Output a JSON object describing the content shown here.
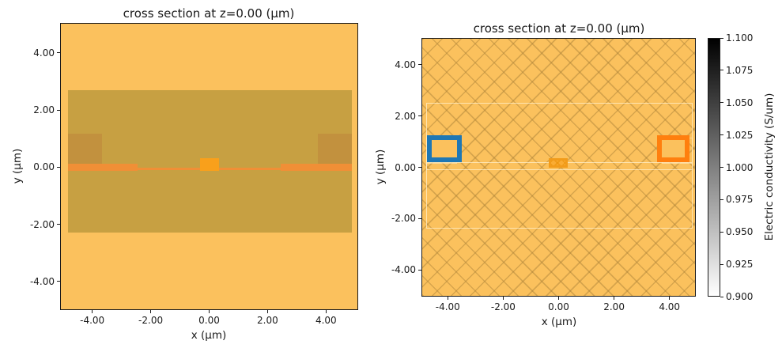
{
  "figure": {
    "background": "#ffffff",
    "text_color": "#1a1a1a",
    "accent_blue": "#1f77b4",
    "accent_orange": "#ff7f0e"
  },
  "chart_data": [
    {
      "id": "left-material-view",
      "type": "heatmap",
      "title": "cross section at z=0.00 (μm)",
      "xlabel": "x (μm)",
      "ylabel": "y (μm)",
      "xlim": [
        -5.1,
        5.1
      ],
      "ylim": [
        -5.0,
        5.05
      ],
      "grid": false,
      "xticks": {
        "values": [
          -4,
          -2,
          0,
          2,
          4
        ],
        "labels": [
          "-4.00",
          "-2.00",
          "0.00",
          "2.00",
          "4.00"
        ]
      },
      "yticks": {
        "values": [
          -4,
          -2,
          0,
          2,
          4
        ],
        "labels": [
          "-4.00",
          "-2.00",
          "0.00",
          "2.00",
          "4.00"
        ]
      },
      "background_fill": "#FBC15D",
      "structures": [
        {
          "name": "oxide-cladding-band",
          "x": [
            -4.87,
            4.87
          ],
          "y": [
            -2.25,
            2.72
          ],
          "fill": "#C7A042"
        },
        {
          "name": "doped-pad-left",
          "x": [
            -4.87,
            -3.7
          ],
          "y": [
            0.16,
            1.2
          ],
          "fill": "#C2913E"
        },
        {
          "name": "doped-pad-right",
          "x": [
            3.7,
            4.87
          ],
          "y": [
            0.16,
            1.2
          ],
          "fill": "#C2913E"
        },
        {
          "name": "slab-thick-left",
          "x": [
            -4.87,
            -2.47
          ],
          "y": [
            -0.09,
            0.145
          ],
          "fill": "#F08F36"
        },
        {
          "name": "slab-thin-center",
          "x": [
            -2.47,
            2.43
          ],
          "y": [
            -0.06,
            0.02
          ],
          "fill": "#F08F36"
        },
        {
          "name": "slab-thick-right",
          "x": [
            2.43,
            4.87
          ],
          "y": [
            -0.09,
            0.145
          ],
          "fill": "#F08F36"
        },
        {
          "name": "waveguide-core",
          "x": [
            -0.33,
            0.32
          ],
          "y": [
            -0.09,
            0.34
          ],
          "fill": "#F9A01B"
        }
      ]
    },
    {
      "id": "right-conductivity-view",
      "type": "heatmap",
      "title": "cross section at z=0.00 (μm)",
      "xlabel": "x (μm)",
      "ylabel": "y (μm)",
      "xlim": [
        -4.95,
        4.95
      ],
      "ylim": [
        -5.05,
        5.05
      ],
      "grid": false,
      "xticks": {
        "values": [
          -4,
          -2,
          0,
          2,
          4
        ],
        "labels": [
          "-4.00",
          "-2.00",
          "0.00",
          "2.00",
          "4.00"
        ]
      },
      "yticks": {
        "values": [
          -4,
          -2,
          0,
          2,
          4
        ],
        "labels": [
          "-4.00",
          "-2.00",
          "0.00",
          "2.00",
          "4.00"
        ]
      },
      "background_fill": "#FBC15D",
      "hatch": "cross",
      "structures": [
        {
          "name": "faint-outline-oxide-band",
          "x": [
            -4.8,
            4.8
          ],
          "y": [
            -2.35,
            2.56
          ],
          "stroke": "rgba(255,239,203,0.75)",
          "lw": 1
        },
        {
          "name": "faint-outline-slab",
          "x": [
            -4.8,
            4.8
          ],
          "y": [
            -0.09,
            0.22
          ],
          "stroke": "rgba(255,239,203,0.75)",
          "lw": 1
        },
        {
          "name": "faint-outline-pad-left",
          "x": [
            -4.8,
            -3.7
          ],
          "y": [
            0.16,
            1.2
          ],
          "stroke": "rgba(255,239,203,0.55)",
          "lw": 1
        },
        {
          "name": "faint-outline-pad-right",
          "x": [
            3.7,
            4.8
          ],
          "y": [
            0.16,
            1.2
          ],
          "stroke": "rgba(255,239,203,0.55)",
          "lw": 1
        },
        {
          "name": "monitor-box-blue",
          "x": [
            -4.77,
            -3.51
          ],
          "y": [
            0.22,
            1.29
          ],
          "fill": "#FBC15D",
          "stroke": "#1f77b4",
          "lw": 6
        },
        {
          "name": "monitor-box-orange",
          "x": [
            3.52,
            4.69
          ],
          "y": [
            0.22,
            1.29
          ],
          "fill": "#FBC15D",
          "stroke": "#ff7f0e",
          "lw": 6
        },
        {
          "name": "source-center-square",
          "x": [
            -0.38,
            0.29
          ],
          "y": [
            0.0,
            0.39
          ],
          "fill": "#FAAC33",
          "stroke": "#F29C1B",
          "lw": 3,
          "hatch": "small"
        }
      ],
      "colorbar": {
        "label": "Electric conductivity (S/um)",
        "vmin": 0.9,
        "vmax": 1.1,
        "vmin_color": "#ffffff",
        "vmax_color": "#000000",
        "ticks": {
          "values": [
            1.1,
            1.075,
            1.05,
            1.025,
            1.0,
            0.975,
            0.95,
            0.925,
            0.9
          ],
          "labels": [
            "1.100",
            "1.075",
            "1.050",
            "1.025",
            "1.000",
            "0.975",
            "0.950",
            "0.925",
            "0.900"
          ]
        }
      }
    }
  ]
}
